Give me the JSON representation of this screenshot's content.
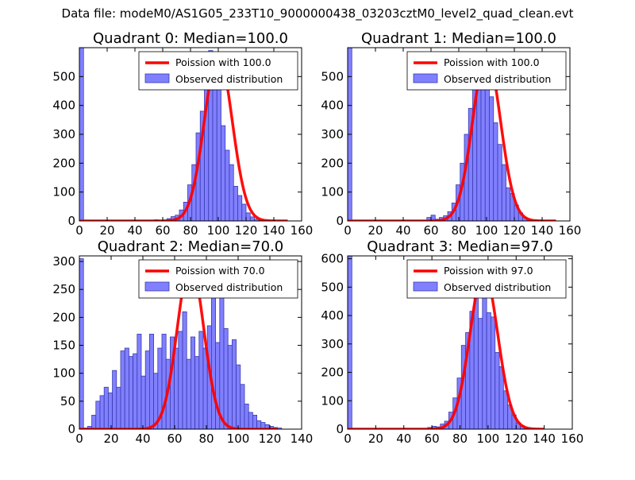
{
  "suptitle": "Data file: modeM0/AS1G05_233T10_9000000438_03203cztM0_level2_quad_clean.evt",
  "colors": {
    "hist_fill": "#8080ff",
    "hist_edge": "#3a3ab0",
    "poisson": "#ff0000",
    "axis": "#000000"
  },
  "chart_data": [
    {
      "type": "bar",
      "title": "Quadrant 0: Median=100.0",
      "xlim": [
        0,
        160
      ],
      "ylim": [
        0,
        600
      ],
      "xticks": [
        0,
        20,
        40,
        60,
        80,
        100,
        120,
        140,
        160
      ],
      "yticks": [
        0,
        100,
        200,
        300,
        400,
        500
      ],
      "bin_width": 3,
      "legend": {
        "location": "top-right",
        "entries": [
          "Poission with 100.0",
          "Observed distribution"
        ]
      },
      "series": [
        {
          "name": "Observed distribution",
          "kind": "histogram",
          "bins": [
            0,
            54,
            63,
            66,
            69,
            72,
            75,
            78,
            81,
            84,
            87,
            90,
            93,
            96,
            99,
            102,
            105,
            108,
            111,
            114,
            117,
            120,
            123,
            126,
            129
          ],
          "values": [
            600,
            4,
            8,
            15,
            20,
            38,
            65,
            125,
            195,
            305,
            380,
            495,
            590,
            545,
            480,
            330,
            245,
            195,
            120,
            88,
            58,
            28,
            14,
            6,
            3
          ]
        },
        {
          "name": "Poission with 100.0",
          "kind": "curve",
          "lambda": 100.0,
          "peak": 575,
          "x_range": [
            0,
            150
          ]
        }
      ]
    },
    {
      "type": "bar",
      "title": "Quadrant 1: Median=100.0",
      "xlim": [
        0,
        160
      ],
      "ylim": [
        0,
        600
      ],
      "xticks": [
        0,
        20,
        40,
        60,
        80,
        100,
        120,
        140,
        160
      ],
      "yticks": [
        0,
        100,
        200,
        300,
        400,
        500
      ],
      "bin_width": 3,
      "legend": {
        "location": "top-right",
        "entries": [
          "Poission with 100.0",
          "Observed distribution"
        ]
      },
      "series": [
        {
          "name": "Observed distribution",
          "kind": "histogram",
          "bins": [
            0,
            57,
            60,
            63,
            66,
            69,
            72,
            75,
            78,
            81,
            84,
            87,
            90,
            93,
            96,
            99,
            102,
            105,
            108,
            111,
            114,
            117,
            120,
            123,
            126,
            129
          ],
          "values": [
            600,
            12,
            20,
            6,
            12,
            18,
            32,
            62,
            125,
            200,
            300,
            390,
            480,
            550,
            560,
            515,
            430,
            340,
            265,
            195,
            115,
            95,
            55,
            28,
            12,
            5
          ]
        },
        {
          "name": "Poission with 100.0",
          "kind": "curve",
          "lambda": 100.0,
          "peak": 575,
          "x_range": [
            0,
            150
          ]
        }
      ]
    },
    {
      "type": "bar",
      "title": "Quadrant 2: Median=70.0",
      "xlim": [
        0,
        140
      ],
      "ylim": [
        0,
        310
      ],
      "xticks": [
        0,
        20,
        40,
        60,
        80,
        100,
        120,
        140
      ],
      "yticks": [
        0,
        50,
        100,
        150,
        200,
        250,
        300
      ],
      "bin_width": 2.6,
      "legend": {
        "location": "top-right",
        "entries": [
          "Poission with 70.0",
          "Observed distribution"
        ]
      },
      "series": [
        {
          "name": "Observed distribution",
          "kind": "histogram",
          "bins": [
            0,
            2.6,
            5.2,
            7.8,
            10.4,
            13,
            15.6,
            18.2,
            20.8,
            23.4,
            26,
            28.6,
            31.2,
            33.8,
            36.4,
            39,
            41.6,
            44.2,
            46.8,
            49.4,
            52,
            54.6,
            57.2,
            59.8,
            62.4,
            65,
            67.6,
            70.2,
            72.8,
            75.4,
            78,
            80.6,
            83.2,
            85.8,
            88.4,
            91,
            93.6,
            96.2,
            98.8,
            101.4,
            104,
            106.6,
            109.2,
            111.8,
            114.4,
            117,
            119.6,
            122.2,
            124.8
          ],
          "values": [
            305,
            2,
            5,
            25,
            50,
            60,
            75,
            65,
            105,
            75,
            140,
            145,
            130,
            135,
            170,
            95,
            140,
            170,
            100,
            145,
            170,
            125,
            165,
            145,
            175,
            210,
            125,
            165,
            130,
            175,
            145,
            185,
            280,
            155,
            295,
            180,
            150,
            160,
            115,
            80,
            45,
            30,
            25,
            15,
            12,
            8,
            5,
            3,
            2
          ]
        },
        {
          "name": "Poission with 70.0",
          "kind": "curve",
          "lambda": 70.0,
          "peak": 297,
          "x_range": [
            0,
            125
          ]
        }
      ]
    },
    {
      "type": "bar",
      "title": "Quadrant 3: Median=97.0",
      "xlim": [
        0,
        160
      ],
      "ylim": [
        0,
        610
      ],
      "xticks": [
        0,
        20,
        40,
        60,
        80,
        100,
        120,
        140,
        160
      ],
      "yticks": [
        0,
        100,
        200,
        300,
        400,
        500,
        600
      ],
      "bin_width": 3,
      "legend": {
        "location": "top-right",
        "entries": [
          "Poission with 97.0",
          "Observed distribution"
        ]
      },
      "series": [
        {
          "name": "Observed distribution",
          "kind": "histogram",
          "bins": [
            0,
            57,
            60,
            63,
            66,
            69,
            72,
            75,
            78,
            81,
            84,
            87,
            90,
            93,
            96,
            99,
            102,
            105,
            108,
            111,
            114,
            117,
            120,
            123,
            126
          ],
          "values": [
            610,
            6,
            10,
            8,
            18,
            28,
            60,
            110,
            180,
            295,
            340,
            415,
            495,
            390,
            545,
            410,
            395,
            270,
            220,
            135,
            85,
            50,
            22,
            12,
            5
          ]
        },
        {
          "name": "Poission with 97.0",
          "kind": "curve",
          "lambda": 97.0,
          "peak": 555,
          "x_range": [
            0,
            140
          ]
        }
      ]
    }
  ]
}
